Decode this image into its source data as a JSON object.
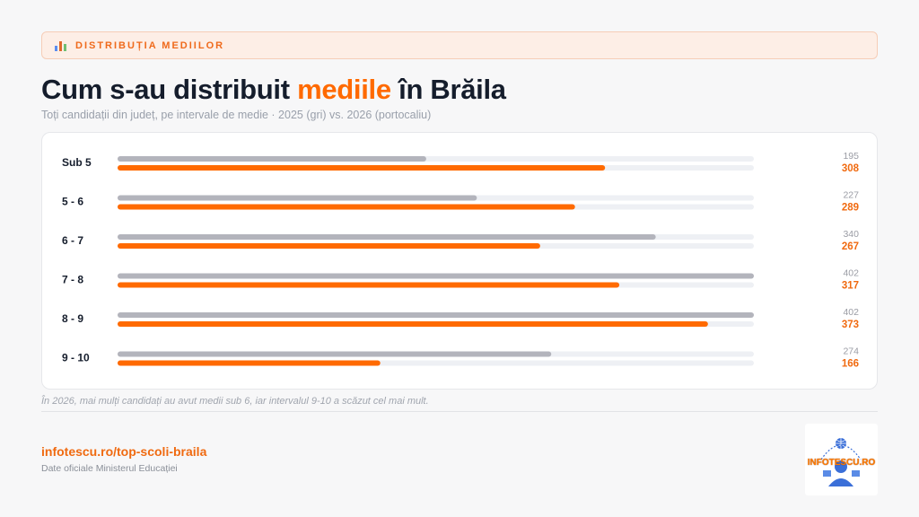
{
  "header": {
    "tag_label": "DISTRIBUȚIA MEDIILOR",
    "tag_icon": "bar-chart-icon"
  },
  "title": {
    "part1": "Cum s-au distribuit ",
    "accent": "mediile",
    "part2": " în Brăila"
  },
  "subtitle": "Toți candidații din județ, pe intervale de medie · 2025 (gri) vs. 2026 (portocaliu)",
  "chart_data": {
    "type": "bar",
    "orientation": "horizontal",
    "categories": [
      "Sub 5",
      "5 - 6",
      "6 - 7",
      "7 - 8",
      "8 - 9",
      "9 - 10"
    ],
    "series": [
      {
        "name": "2025",
        "color": "#b3b4bc",
        "values": [
          195,
          227,
          340,
          402,
          402,
          274
        ]
      },
      {
        "name": "2026",
        "color": "#ff6a00",
        "values": [
          308,
          289,
          267,
          317,
          373,
          166
        ]
      }
    ],
    "xlim": [
      0,
      402
    ],
    "track_color": "#eef0f4",
    "grid": false
  },
  "note": "În 2026, mai mulți candidați au avut medii sub 6, iar intervalul 9-10 a scăzut cel mai mult.",
  "footer": {
    "link": "infotescu.ro/top-scoli-braila",
    "source": "Date oficiale Ministerul Educației"
  },
  "logo": {
    "text": "INFOTESCU.RO"
  }
}
